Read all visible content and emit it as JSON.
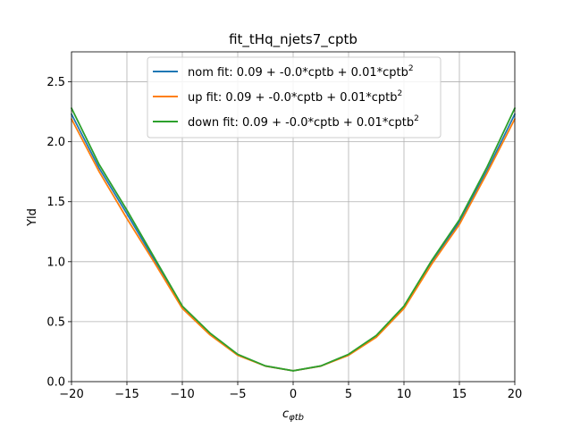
{
  "chart_data": {
    "type": "line",
    "title": "fit_tHq_njets7_cptb",
    "xlabel": "c",
    "xlabel_sub": "φtb",
    "ylabel": "Yld",
    "xlim": [
      -20,
      20
    ],
    "ylim": [
      0,
      2.75
    ],
    "xticks": [
      -20,
      -15,
      -10,
      -5,
      0,
      5,
      10,
      15,
      20
    ],
    "xtick_labels": [
      "−20",
      "−15",
      "−10",
      "−5",
      "0",
      "5",
      "10",
      "15",
      "20"
    ],
    "yticks": [
      0.0,
      0.5,
      1.0,
      1.5,
      2.0,
      2.5
    ],
    "ytick_labels": [
      "0.0",
      "0.5",
      "1.0",
      "1.5",
      "2.0",
      "2.5"
    ],
    "grid": true,
    "legend_position": "top-center",
    "series": [
      {
        "name": "nom fit: 0.09 + -0.0*cptb + 0.01*cptb",
        "name_sup": "2",
        "color": "#1f77b4",
        "x": [
          -20,
          -17.5,
          -15,
          -12.5,
          -10,
          -7.5,
          -5,
          -2.5,
          0,
          2.5,
          5,
          7.5,
          10,
          12.5,
          15,
          17.5,
          20
        ],
        "y": [
          2.23,
          1.78,
          1.4,
          1.01,
          0.62,
          0.4,
          0.225,
          0.13,
          0.09,
          0.13,
          0.225,
          0.38,
          0.62,
          0.99,
          1.33,
          1.76,
          2.23
        ]
      },
      {
        "name": "up fit: 0.09 + -0.0*cptb + 0.01*cptb",
        "name_sup": "2",
        "color": "#ff7f0e",
        "x": [
          -20,
          -17.5,
          -15,
          -12.5,
          -10,
          -7.5,
          -5,
          -2.5,
          0,
          2.5,
          5,
          7.5,
          10,
          12.5,
          15,
          17.5,
          20
        ],
        "y": [
          2.19,
          1.75,
          1.36,
          0.99,
          0.61,
          0.39,
          0.22,
          0.13,
          0.09,
          0.13,
          0.22,
          0.37,
          0.61,
          0.98,
          1.31,
          1.74,
          2.19
        ]
      },
      {
        "name": "down fit: 0.09 + -0.0*cptb + 0.01*cptb",
        "name_sup": "2",
        "color": "#2ca02c",
        "x": [
          -20,
          -17.5,
          -15,
          -12.5,
          -10,
          -7.5,
          -5,
          -2.5,
          0,
          2.5,
          5,
          7.5,
          10,
          12.5,
          15,
          17.5,
          20
        ],
        "y": [
          2.28,
          1.81,
          1.43,
          1.03,
          0.63,
          0.405,
          0.228,
          0.131,
          0.09,
          0.131,
          0.228,
          0.385,
          0.63,
          1.01,
          1.35,
          1.79,
          2.28
        ]
      }
    ]
  }
}
